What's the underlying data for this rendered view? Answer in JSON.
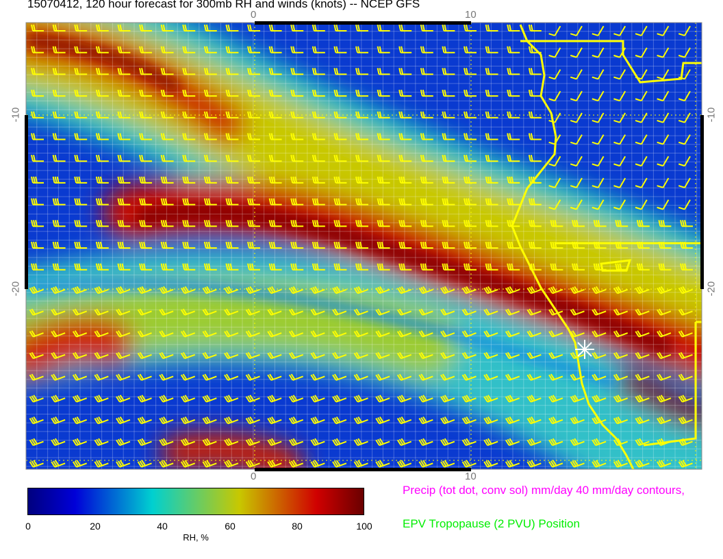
{
  "title": "15070412, 120 hour forecast for 300mb RH and winds (knots) -- NCEP GFS",
  "map": {
    "x_ticks": [
      "0",
      "10"
    ],
    "y_ticks": [
      "-10",
      "-20"
    ],
    "wind_barb_color": "#ffff00",
    "coastline_color": "#ffff00",
    "marker": "white-star"
  },
  "colorbar": {
    "ticks": [
      "0",
      "20",
      "40",
      "60",
      "80",
      "100"
    ],
    "label": "RH, %",
    "colors": [
      "#00007f",
      "#0000d8",
      "#00d0d0",
      "#c8c800",
      "#d00000",
      "#6a0000"
    ]
  },
  "legend": {
    "precip": {
      "text": "Precip (tot dot, conv sol) mm/day 40 mm/day contours,",
      "color": "#ff00ff"
    },
    "tropopause": {
      "text": "EPV Tropopause (2 PVU) Position",
      "color": "#00ee00"
    }
  }
}
